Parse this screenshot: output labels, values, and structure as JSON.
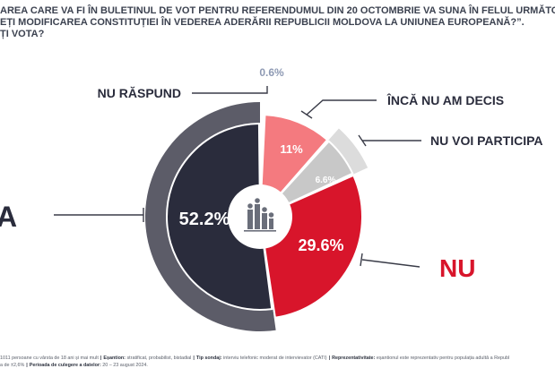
{
  "title": {
    "line1": "AREA CARE VA FI ÎN BULETINUL DE VOT PENTRU REFERENDUMUL DIN 20 OCTOMBRIE VA SUNA ÎN FELUL URMĂTOR:",
    "line2": "EȚI MODIFICAREA CONSTITUȚIEI ÎN VEDEREA ADERĂRII REPUBLICII MOLDOVA LA UNIUNEA EUROPEANĂ?”.",
    "line3": "ȚI VOTA?"
  },
  "chart_data": {
    "type": "pie",
    "slices": [
      {
        "label": "A",
        "value": 52.2,
        "value_label": "52.2%",
        "color": "#2a2c3c"
      },
      {
        "label": "NU",
        "value": 29.6,
        "value_label": "29.6%",
        "color": "#d8152b"
      },
      {
        "label": "NU VOI PARTICIPA",
        "value": 6.6,
        "value_label": "6.6%",
        "color": "#c8c8c8"
      },
      {
        "label": "ÎNCĂ  NU AM DECIS",
        "value": 11,
        "value_label": "11%",
        "color": "#f47a7f"
      },
      {
        "label": "NU RĂSPUND",
        "value": 0.6,
        "value_label": "0.6%",
        "color": "#8e9ab4"
      }
    ],
    "center_icon": "people-chart-icon",
    "outer_ring_colors": {
      "A": "#5c5c68",
      "NU VOI PARTICIPA": "#dcdcdc"
    }
  },
  "footer": {
    "line1_parts": [
      {
        "text": "1011 persoane cu vârsta de 18 ani și mai mult",
        "bold": false
      },
      {
        "text": "Eșantion:",
        "bold": true
      },
      {
        "text": "stratificat, probabilist, bistadial",
        "bold": false
      },
      {
        "text": "Tip sondaj:",
        "bold": true
      },
      {
        "text": "interviu telefonic moderat de intervievator (CATI)",
        "bold": false
      },
      {
        "text": "Reprezentativitate:",
        "bold": true
      },
      {
        "text": "eșantionul este reprezentativ pentru populația adultă a Republ",
        "bold": false
      }
    ],
    "line2_start": "a de ±2,6%",
    "line2_label": "Perioada de culegere a datelor:",
    "line2_value": "20 – 23 august 2024."
  }
}
